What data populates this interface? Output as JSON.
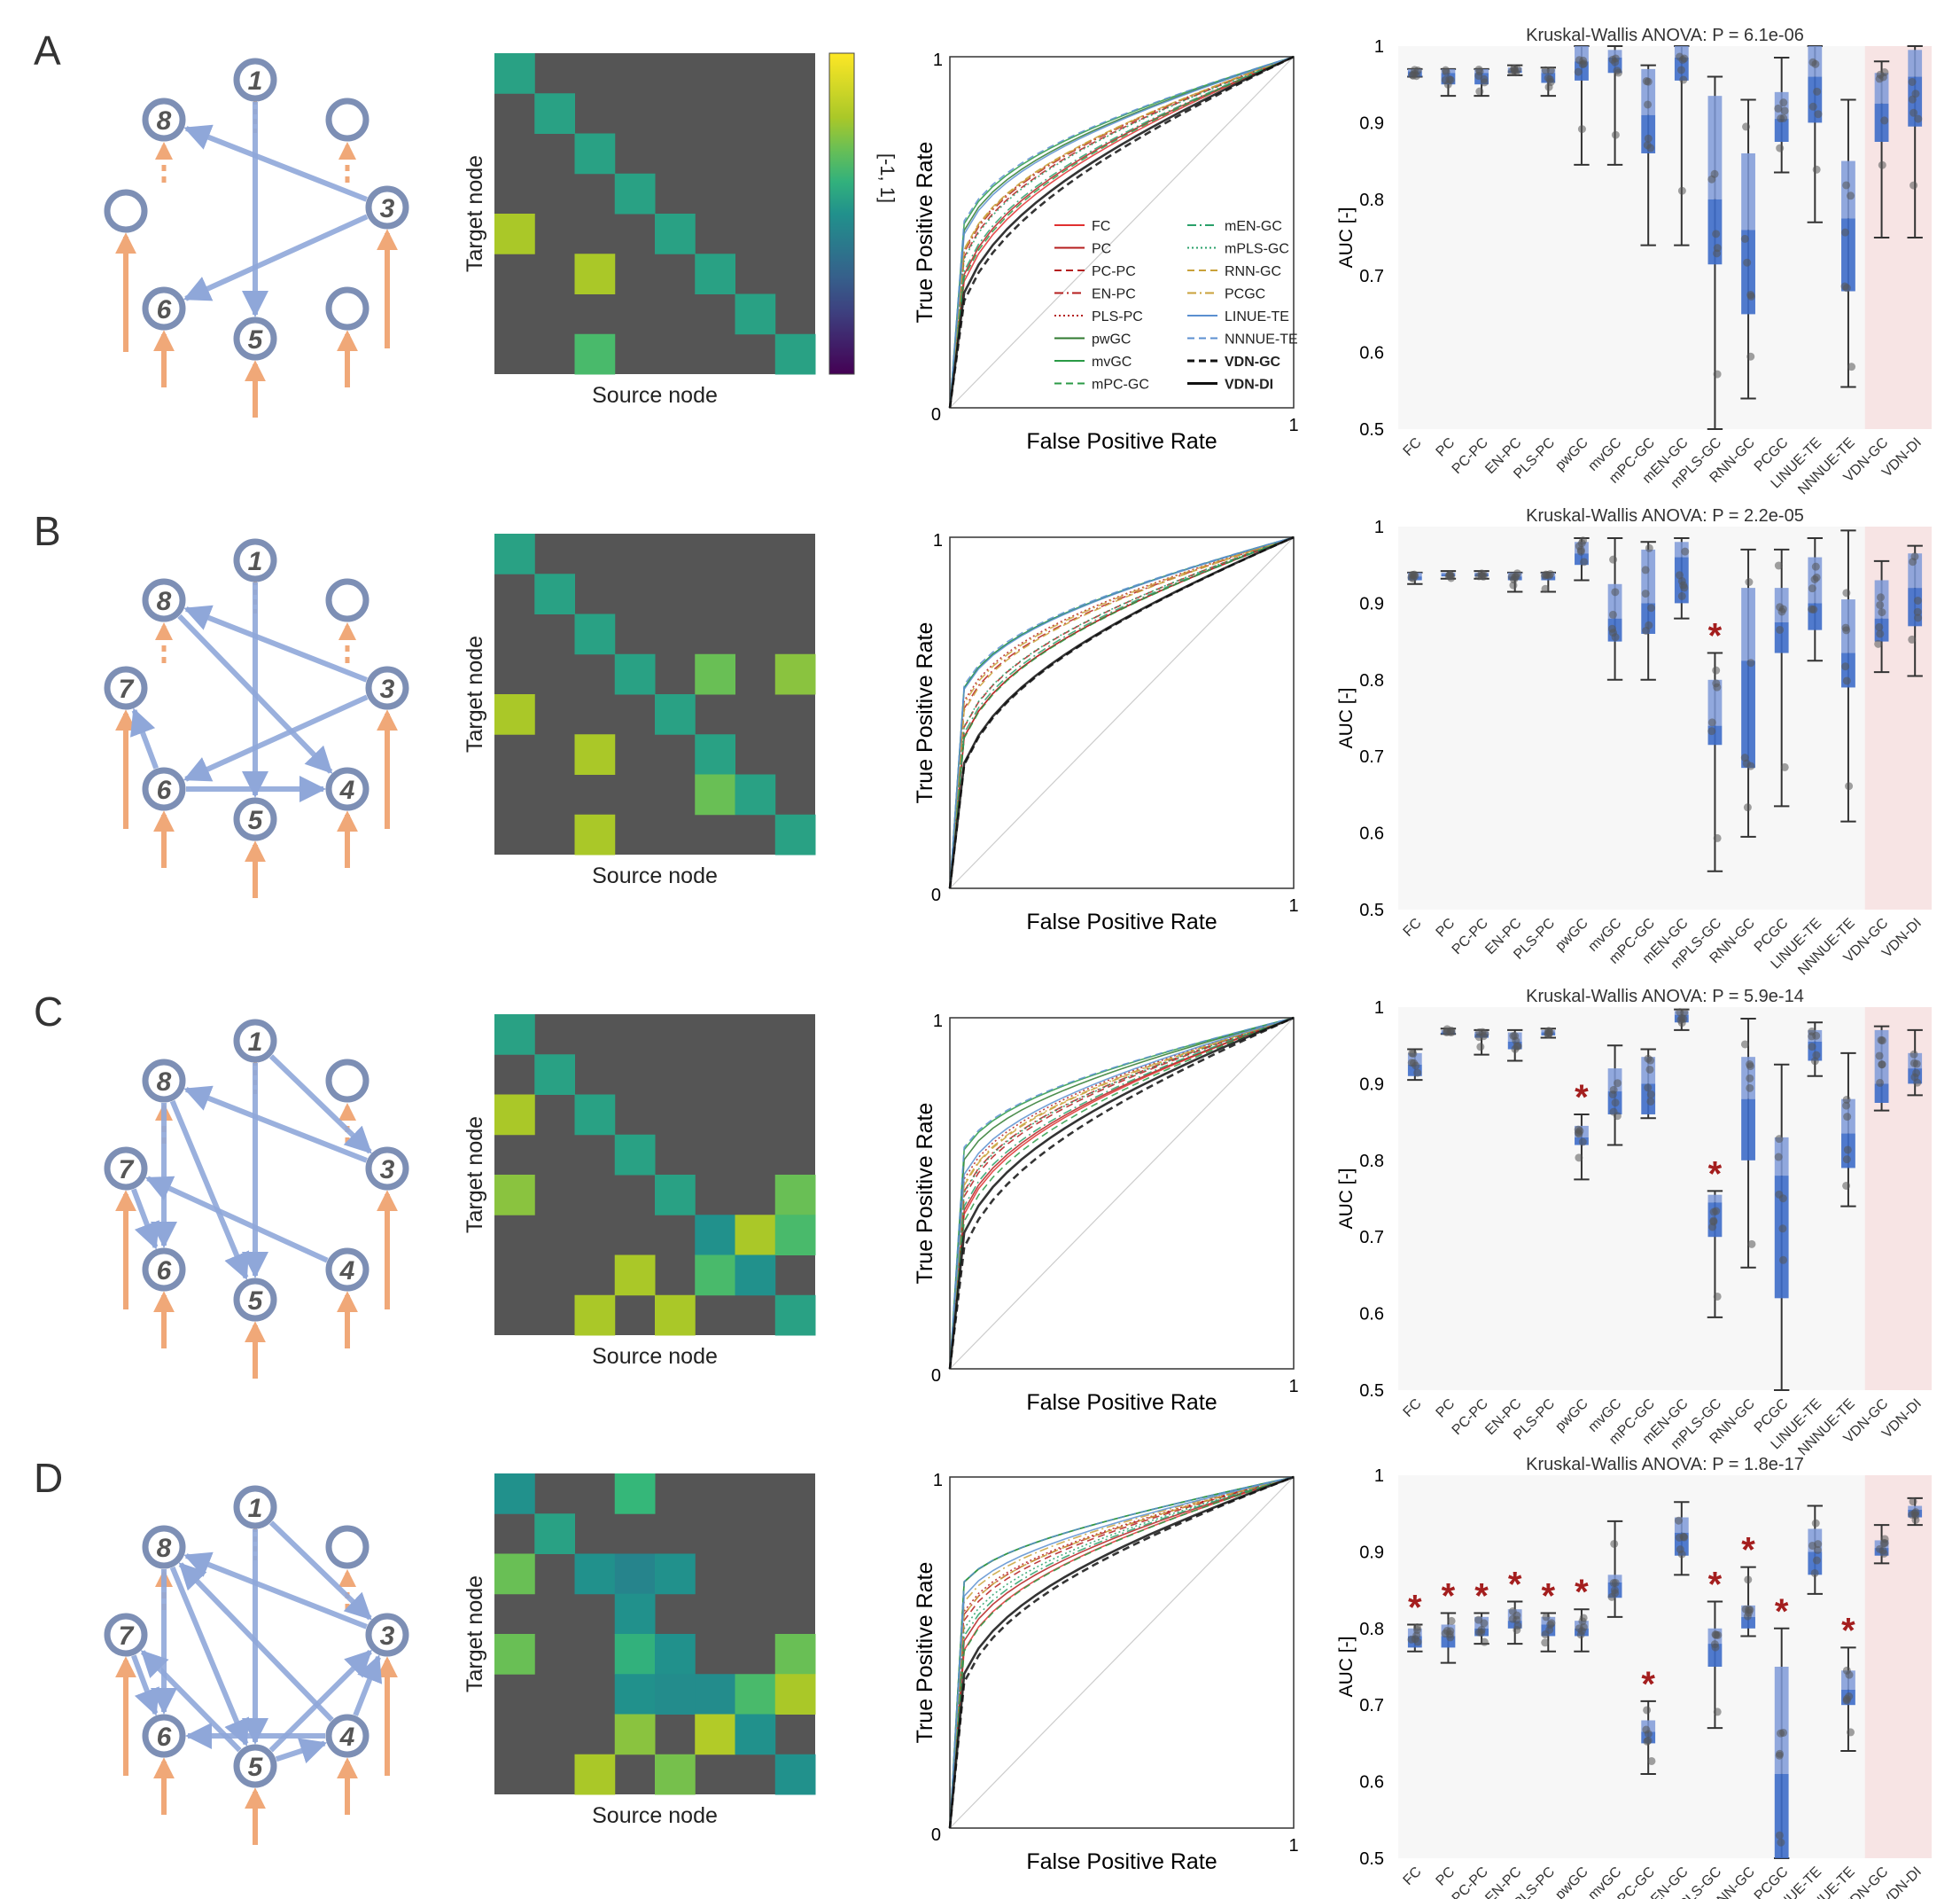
{
  "rows": [
    {
      "letter": "A",
      "anova": "Kruskal-Wallis ANOVA: P = 6.1e-06"
    },
    {
      "letter": "B",
      "anova": "Kruskal-Wallis ANOVA: P = 2.2e-05"
    },
    {
      "letter": "C",
      "anova": "Kruskal-Wallis ANOVA: P = 5.9e-14"
    },
    {
      "letter": "D",
      "anova": "Kruskal-Wallis ANOVA: P = 1.8e-17"
    }
  ],
  "matrix": {
    "xlabel": "Source node",
    "ylabel": "Target node",
    "colorbar_label": "[-1, 1]"
  },
  "roc": {
    "xlabel": "False Positive Rate",
    "ylabel": "True Positive Rate",
    "tick0": "0",
    "tick1": "1"
  },
  "legend": [
    {
      "name": "FC",
      "color": "#e03030",
      "dash": ""
    },
    {
      "name": "PC",
      "color": "#b51e1e",
      "dash": ""
    },
    {
      "name": "PC-PC",
      "color": "#b51e1e",
      "dash": "8,5"
    },
    {
      "name": "EN-PC",
      "color": "#b51e1e",
      "dash": "10,4,2,4"
    },
    {
      "name": "PLS-PC",
      "color": "#b51e1e",
      "dash": "2,3"
    },
    {
      "name": "pwGC",
      "color": "#2f7a2f",
      "dash": ""
    },
    {
      "name": "mvGC",
      "color": "#2a9a45",
      "dash": ""
    },
    {
      "name": "mPC-GC",
      "color": "#2a9a45",
      "dash": "8,5"
    },
    {
      "name": "mEN-GC",
      "color": "#2aa06a",
      "dash": "10,4,2,4"
    },
    {
      "name": "mPLS-GC",
      "color": "#2aa06a",
      "dash": "2,3"
    },
    {
      "name": "RNN-GC",
      "color": "#c9a13a",
      "dash": "8,5"
    },
    {
      "name": "PCGC",
      "color": "#c9a13a",
      "dash": "10,4,2,4"
    },
    {
      "name": "LINUE-TE",
      "color": "#5b8fd0",
      "dash": ""
    },
    {
      "name": "NNNUE-TE",
      "color": "#5b8fd0",
      "dash": "8,5"
    },
    {
      "name": "VDN-GC",
      "color": "#111111",
      "dash": "8,5",
      "bold": true
    },
    {
      "name": "VDN-DI",
      "color": "#111111",
      "dash": "",
      "bold": true
    }
  ],
  "box": {
    "ylabel": "AUC [-]",
    "yticks": [
      "1",
      "0.9",
      "0.8",
      "0.7",
      "0.6",
      "0.5"
    ],
    "methods": [
      "FC",
      "PC",
      "PC-PC",
      "EN-PC",
      "PLS-PC",
      "pwGC",
      "mvGC",
      "mPC-GC",
      "mEN-GC",
      "mPLS-GC",
      "RNN-GC",
      "PCGC",
      "LINUE-TE",
      "NNNUE-TE",
      "VDN-GC",
      "VDN-DI"
    ]
  },
  "chart_data": [
    {
      "type": "box",
      "panel": "A",
      "title": "Kruskal-Wallis ANOVA: P = 6.1e-06",
      "ylabel": "AUC [-]",
      "ylim": [
        0.5,
        1
      ],
      "categories": [
        "FC",
        "PC",
        "PC-PC",
        "EN-PC",
        "PLS-PC",
        "pwGC",
        "mvGC",
        "mPC-GC",
        "mEN-GC",
        "mPLS-GC",
        "RNN-GC",
        "PCGC",
        "LINUE-TE",
        "NNNUE-TE",
        "VDN-GC",
        "VDN-DI"
      ],
      "stats": [
        [
          0.96,
          0.96,
          0.967,
          0.97,
          0.97
        ],
        [
          0.935,
          0.95,
          0.965,
          0.97,
          0.97
        ],
        [
          0.935,
          0.95,
          0.965,
          0.97,
          0.97
        ],
        [
          0.962,
          0.965,
          0.968,
          0.972,
          0.975
        ],
        [
          0.935,
          0.952,
          0.965,
          0.97,
          0.972
        ],
        [
          0.845,
          0.955,
          0.98,
          1.0,
          1.0
        ],
        [
          0.845,
          0.965,
          0.985,
          0.995,
          1.0
        ],
        [
          0.74,
          0.86,
          0.91,
          0.97,
          0.975
        ],
        [
          0.74,
          0.955,
          0.985,
          1.0,
          1.0
        ],
        [
          0.5,
          0.715,
          0.8,
          0.935,
          0.96
        ],
        [
          0.54,
          0.65,
          0.76,
          0.86,
          0.93
        ],
        [
          0.835,
          0.875,
          0.905,
          0.94,
          0.985
        ],
        [
          0.77,
          0.9,
          0.96,
          1.0,
          1.0
        ],
        [
          0.555,
          0.68,
          0.775,
          0.85,
          0.93
        ],
        [
          0.75,
          0.875,
          0.925,
          0.965,
          0.98
        ],
        [
          0.75,
          0.895,
          0.96,
          0.995,
          1.0
        ]
      ],
      "significant": []
    },
    {
      "type": "box",
      "panel": "B",
      "title": "Kruskal-Wallis ANOVA: P = 2.2e-05",
      "ylabel": "AUC [-]",
      "ylim": [
        0.5,
        1
      ],
      "categories": [
        "FC",
        "PC",
        "PC-PC",
        "EN-PC",
        "PLS-PC",
        "pwGC",
        "mvGC",
        "mPC-GC",
        "mEN-GC",
        "mPLS-GC",
        "RNN-GC",
        "PCGC",
        "LINUE-TE",
        "NNNUE-TE",
        "VDN-GC",
        "VDN-DI"
      ],
      "stats": [
        [
          0.925,
          0.93,
          0.935,
          0.94,
          0.94
        ],
        [
          0.932,
          0.935,
          0.938,
          0.94,
          0.942
        ],
        [
          0.932,
          0.935,
          0.938,
          0.94,
          0.942
        ],
        [
          0.915,
          0.93,
          0.935,
          0.94,
          0.94
        ],
        [
          0.915,
          0.93,
          0.935,
          0.94,
          0.94
        ],
        [
          0.93,
          0.95,
          0.965,
          0.98,
          0.985
        ],
        [
          0.8,
          0.85,
          0.88,
          0.925,
          0.985
        ],
        [
          0.8,
          0.86,
          0.9,
          0.97,
          0.98
        ],
        [
          0.88,
          0.9,
          0.96,
          0.98,
          0.985
        ],
        [
          0.55,
          0.715,
          0.74,
          0.8,
          0.835
        ],
        [
          0.595,
          0.685,
          0.825,
          0.92,
          0.97
        ],
        [
          0.635,
          0.835,
          0.875,
          0.92,
          0.97
        ],
        [
          0.825,
          0.865,
          0.9,
          0.96,
          0.985
        ],
        [
          0.615,
          0.79,
          0.835,
          0.905,
          0.995
        ],
        [
          0.81,
          0.85,
          0.88,
          0.93,
          0.955
        ],
        [
          0.805,
          0.87,
          0.92,
          0.965,
          0.975
        ]
      ],
      "significant": [
        "mPLS-GC"
      ]
    },
    {
      "type": "box",
      "panel": "C",
      "title": "Kruskal-Wallis ANOVA: P = 5.9e-14",
      "ylabel": "AUC [-]",
      "ylim": [
        0.5,
        1
      ],
      "categories": [
        "FC",
        "PC",
        "PC-PC",
        "EN-PC",
        "PLS-PC",
        "pwGC",
        "mvGC",
        "mPC-GC",
        "mEN-GC",
        "mPLS-GC",
        "RNN-GC",
        "PCGC",
        "LINUE-TE",
        "NNNUE-TE",
        "VDN-GC",
        "VDN-DI"
      ],
      "stats": [
        [
          0.905,
          0.91,
          0.925,
          0.94,
          0.945
        ],
        [
          0.965,
          0.965,
          0.967,
          0.97,
          0.972
        ],
        [
          0.938,
          0.96,
          0.965,
          0.968,
          0.97
        ],
        [
          0.93,
          0.945,
          0.955,
          0.967,
          0.97
        ],
        [
          0.96,
          0.963,
          0.967,
          0.97,
          0.972
        ],
        [
          0.775,
          0.82,
          0.83,
          0.845,
          0.86
        ],
        [
          0.82,
          0.86,
          0.89,
          0.92,
          0.95
        ],
        [
          0.855,
          0.86,
          0.9,
          0.935,
          0.945
        ],
        [
          0.97,
          0.98,
          0.99,
          0.995,
          0.997
        ],
        [
          0.595,
          0.7,
          0.745,
          0.755,
          0.76
        ],
        [
          0.66,
          0.8,
          0.88,
          0.935,
          0.985
        ],
        [
          0.5,
          0.62,
          0.78,
          0.83,
          0.925
        ],
        [
          0.91,
          0.93,
          0.955,
          0.97,
          0.98
        ],
        [
          0.74,
          0.79,
          0.835,
          0.88,
          0.94
        ],
        [
          0.865,
          0.875,
          0.9,
          0.97,
          0.975
        ],
        [
          0.885,
          0.9,
          0.92,
          0.94,
          0.97
        ]
      ],
      "significant": [
        "pwGC",
        "mPLS-GC"
      ]
    },
    {
      "type": "box",
      "panel": "D",
      "title": "Kruskal-Wallis ANOVA: P = 1.8e-17",
      "ylabel": "AUC [-]",
      "ylim": [
        0.5,
        1
      ],
      "categories": [
        "FC",
        "PC",
        "PC-PC",
        "EN-PC",
        "PLS-PC",
        "pwGC",
        "mvGC",
        "mPC-GC",
        "mEN-GC",
        "mPLS-GC",
        "RNN-GC",
        "PCGC",
        "LINUE-TE",
        "NNNUE-TE",
        "VDN-GC",
        "VDN-DI"
      ],
      "stats": [
        [
          0.77,
          0.775,
          0.79,
          0.8,
          0.805
        ],
        [
          0.755,
          0.775,
          0.79,
          0.805,
          0.82
        ],
        [
          0.78,
          0.79,
          0.8,
          0.815,
          0.82
        ],
        [
          0.78,
          0.8,
          0.81,
          0.825,
          0.835
        ],
        [
          0.77,
          0.79,
          0.805,
          0.815,
          0.82
        ],
        [
          0.77,
          0.79,
          0.8,
          0.81,
          0.825
        ],
        [
          0.815,
          0.84,
          0.86,
          0.87,
          0.94
        ],
        [
          0.61,
          0.65,
          0.665,
          0.68,
          0.705
        ],
        [
          0.87,
          0.895,
          0.925,
          0.945,
          0.965
        ],
        [
          0.67,
          0.75,
          0.78,
          0.8,
          0.835
        ],
        [
          0.79,
          0.8,
          0.815,
          0.83,
          0.88
        ],
        [
          0.5,
          0.5,
          0.61,
          0.75,
          0.8
        ],
        [
          0.845,
          0.87,
          0.9,
          0.93,
          0.96
        ],
        [
          0.64,
          0.7,
          0.72,
          0.745,
          0.775
        ],
        [
          0.885,
          0.895,
          0.905,
          0.915,
          0.935
        ],
        [
          0.935,
          0.945,
          0.955,
          0.96,
          0.97
        ]
      ],
      "significant": [
        "FC",
        "PC",
        "PC-PC",
        "EN-PC",
        "PLS-PC",
        "pwGC",
        "mPC-GC",
        "mPLS-GC",
        "RNN-GC",
        "PCGC",
        "NNNUE-TE"
      ]
    },
    {
      "type": "heatmap",
      "panel": "A",
      "xlabel": "Source node",
      "ylabel": "Target node",
      "colorbar": "[-1, 1]",
      "matrix": [
        [
          0.55,
          0,
          0,
          0,
          0,
          0,
          0,
          0
        ],
        [
          0,
          0.55,
          0,
          0,
          0,
          0,
          0,
          0
        ],
        [
          0,
          0,
          0.55,
          0,
          0,
          0,
          0,
          0
        ],
        [
          0,
          0,
          0,
          0.55,
          0,
          0,
          0,
          0
        ],
        [
          0.8,
          0,
          0,
          0,
          0.55,
          0,
          0,
          0
        ],
        [
          0,
          0,
          0.8,
          0,
          0,
          0.55,
          0,
          0
        ],
        [
          0,
          0,
          0,
          0,
          0,
          0,
          0.55,
          0
        ],
        [
          0,
          0,
          0.65,
          0,
          0,
          0,
          0,
          0.55
        ]
      ]
    },
    {
      "type": "heatmap",
      "panel": "B",
      "xlabel": "Source node",
      "ylabel": "Target node",
      "colorbar": "[-1, 1]",
      "matrix": [
        [
          0.55,
          0,
          0,
          0,
          0,
          0,
          0,
          0
        ],
        [
          0,
          0.55,
          0,
          0,
          0,
          0,
          0,
          0
        ],
        [
          0,
          0,
          0.55,
          0,
          0,
          0,
          0,
          0
        ],
        [
          0,
          0,
          0,
          0.55,
          0,
          0.7,
          0,
          0.75
        ],
        [
          0.8,
          0,
          0,
          0,
          0.55,
          0,
          0,
          0
        ],
        [
          0,
          0,
          0.8,
          0,
          0,
          0.55,
          0,
          0
        ],
        [
          0,
          0,
          0,
          0,
          0,
          0.7,
          0.55,
          0
        ],
        [
          0,
          0,
          0.8,
          0,
          0,
          0,
          0,
          0.55
        ]
      ]
    },
    {
      "type": "heatmap",
      "panel": "C",
      "xlabel": "Source node",
      "ylabel": "Target node",
      "colorbar": "[-1, 1]",
      "matrix": [
        [
          0.55,
          0,
          0,
          0,
          0,
          0,
          0,
          0
        ],
        [
          0,
          0.55,
          0,
          0,
          0,
          0,
          0,
          0
        ],
        [
          0.8,
          0,
          0.55,
          0,
          0,
          0,
          0,
          0
        ],
        [
          0,
          0,
          0,
          0.55,
          0,
          0,
          0,
          0
        ],
        [
          0.75,
          0,
          0,
          0,
          0.55,
          0,
          0,
          0.7
        ],
        [
          0,
          0,
          0,
          0,
          0,
          0.5,
          0.8,
          0.65
        ],
        [
          0,
          0,
          0,
          0.8,
          0,
          0.65,
          0.5,
          0
        ],
        [
          0,
          0,
          0.8,
          0,
          0.8,
          0,
          0,
          0.55
        ]
      ]
    },
    {
      "type": "heatmap",
      "panel": "D",
      "xlabel": "Source node",
      "ylabel": "Target node",
      "colorbar": "[-1, 1]",
      "matrix": [
        [
          0.5,
          0,
          0,
          0.62,
          0,
          0,
          0,
          0
        ],
        [
          0,
          0.55,
          0,
          0,
          0,
          0,
          0,
          0
        ],
        [
          0.7,
          0,
          0.5,
          0.45,
          0.5,
          0,
          0,
          0
        ],
        [
          0,
          0,
          0,
          0.5,
          0,
          0,
          0,
          0
        ],
        [
          0.7,
          0,
          0,
          0.6,
          0.5,
          0,
          0,
          0.7
        ],
        [
          0,
          0,
          0,
          0.5,
          0.48,
          0.48,
          0.65,
          0.8
        ],
        [
          0,
          0,
          0,
          0.75,
          0,
          0.82,
          0.5,
          0
        ],
        [
          0,
          0,
          0.8,
          0,
          0.72,
          0,
          0,
          0.5
        ]
      ]
    }
  ]
}
